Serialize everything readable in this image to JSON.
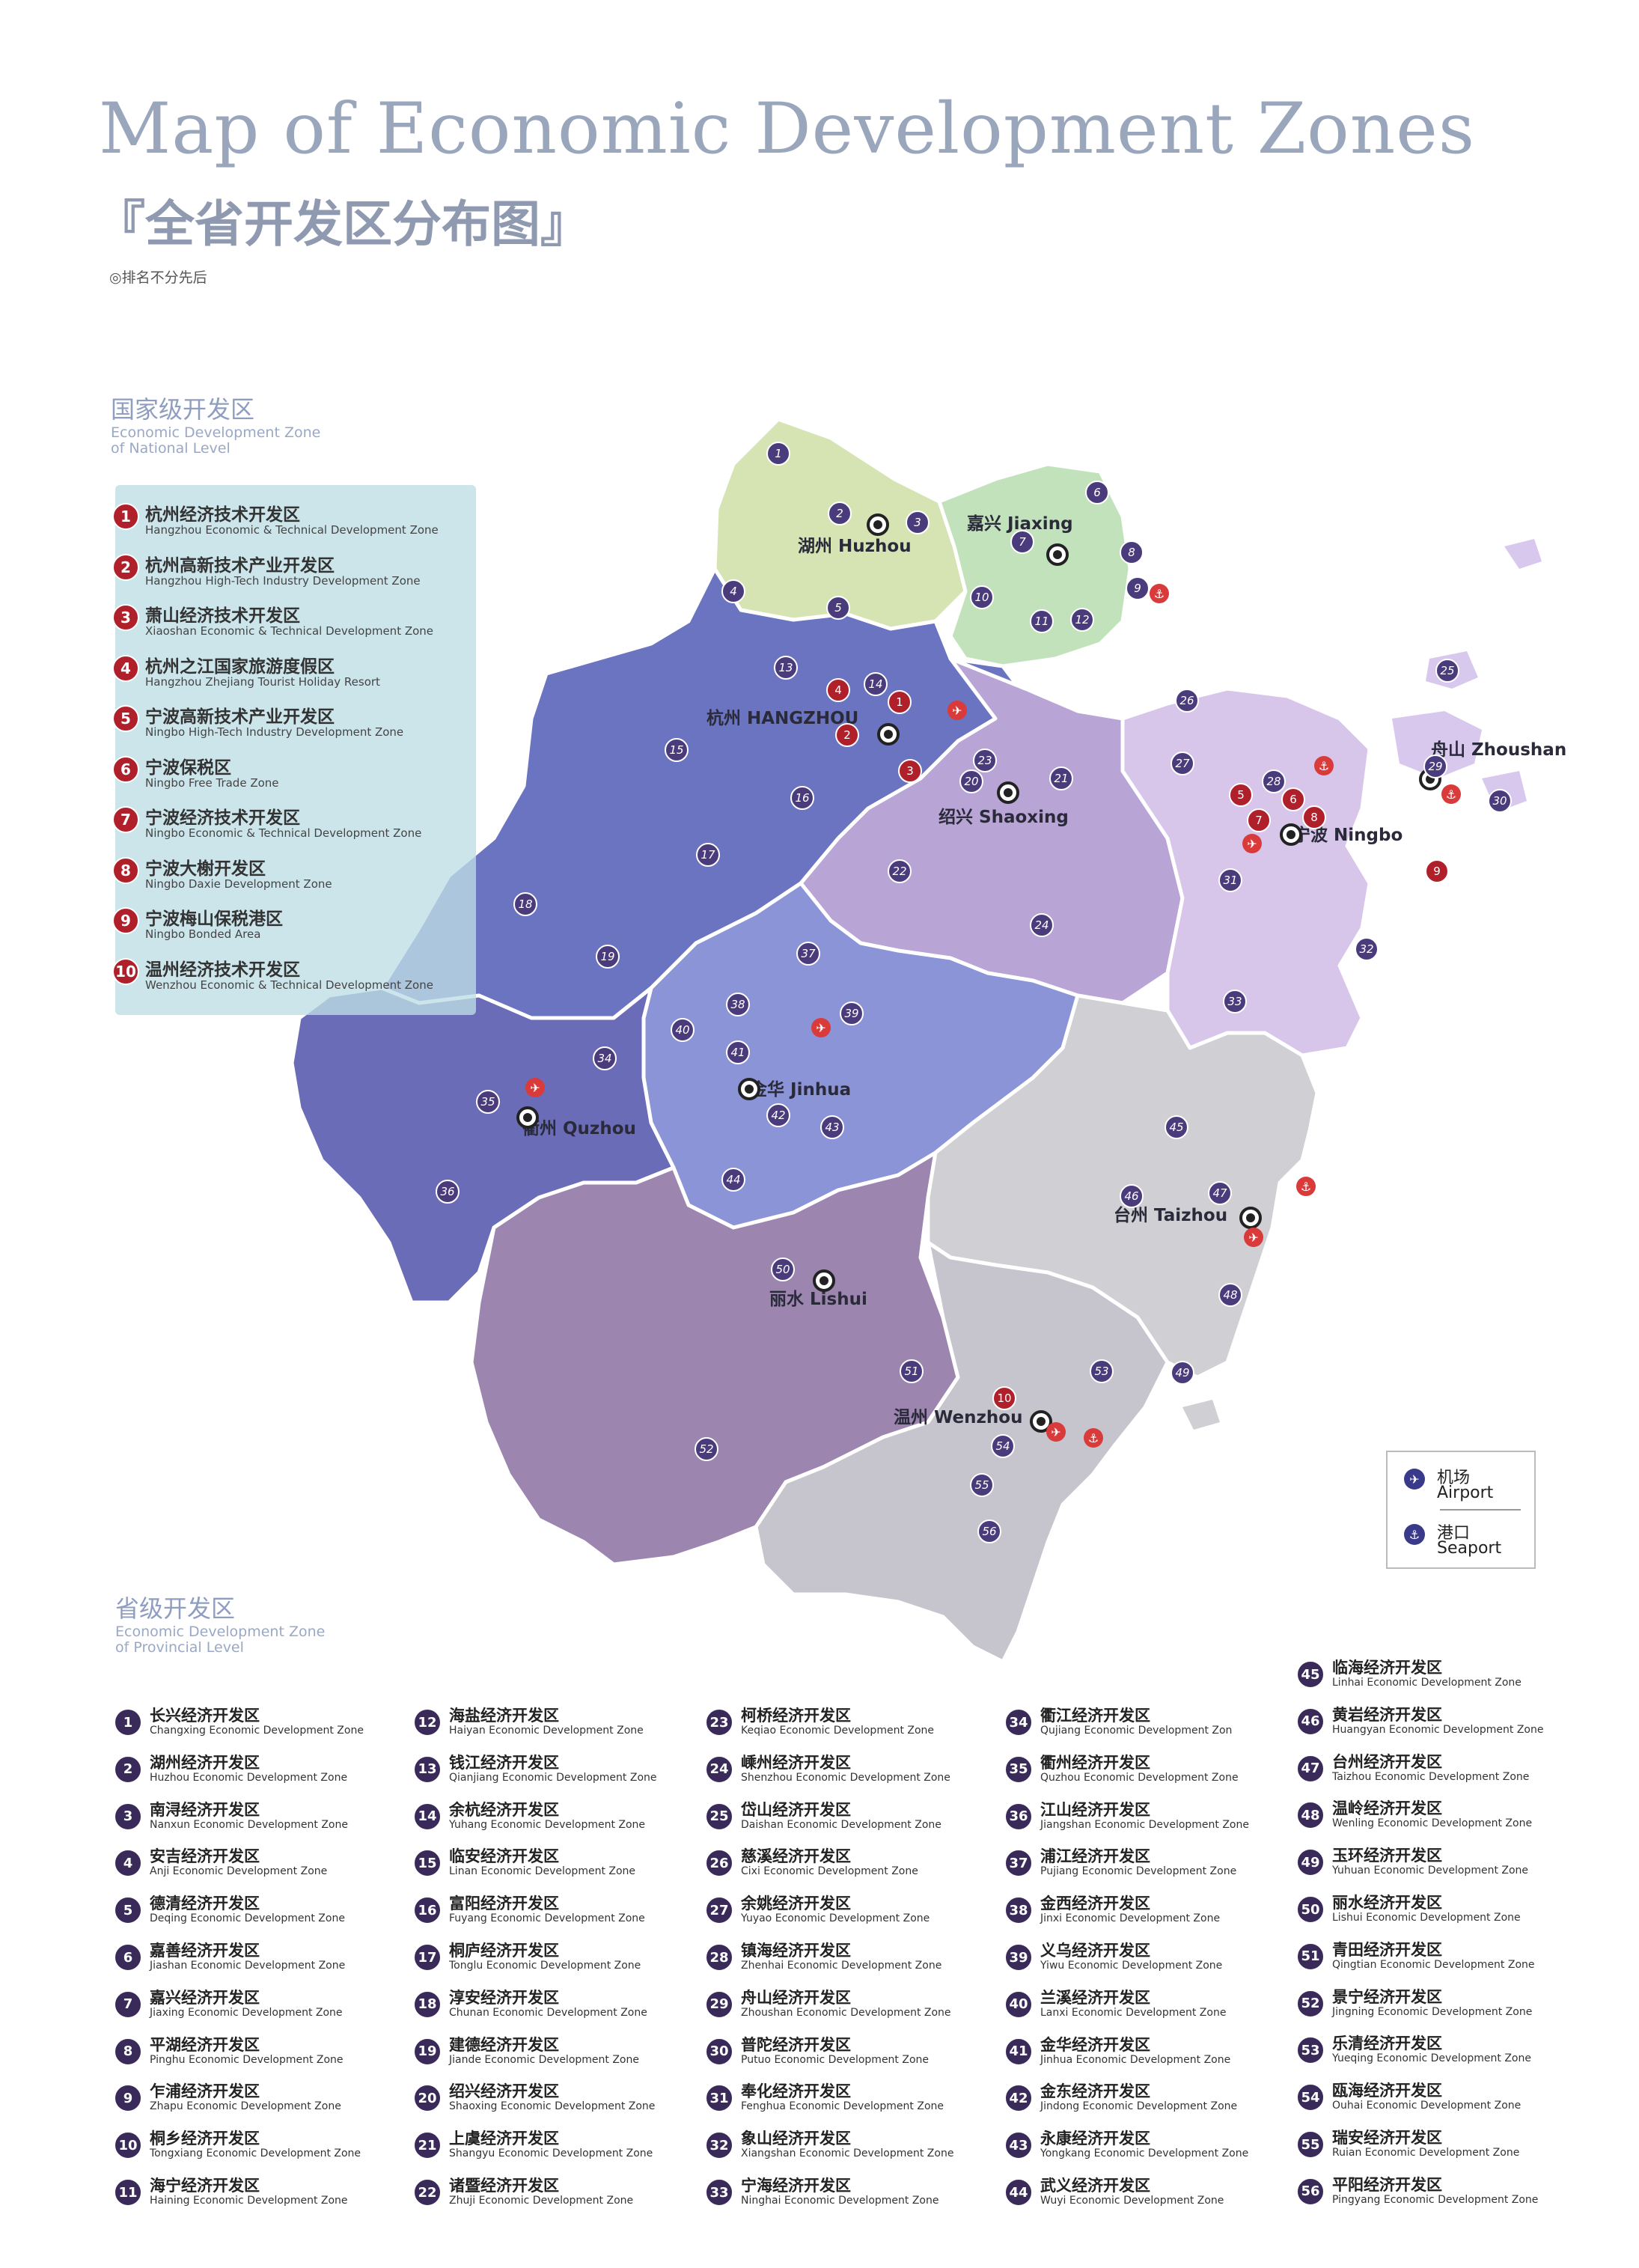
{
  "title": "Map of Economic Development Zones",
  "subtitle": "『全省开发区分布图』",
  "note": "◎排名不分先后",
  "national_section": {
    "cn": "国家级开发区",
    "en": "Economic Development Zone\nof National Level"
  },
  "provincial_section": {
    "cn": "省级开发区",
    "en": "Economic Development Zone\nof Provincial Level"
  },
  "national_zones": [
    {
      "num": "1",
      "cn": "杭州经济技术开发区",
      "en": "Hangzhou Economic & Technical Development Zone"
    },
    {
      "num": "2",
      "cn": "杭州高新技术产业开发区",
      "en": "Hangzhou High-Tech Industry Development Zone"
    },
    {
      "num": "3",
      "cn": "萧山经济技术开发区",
      "en": "Xiaoshan Economic & Technical Development Zone"
    },
    {
      "num": "4",
      "cn": "杭州之江国家旅游度假区",
      "en": "Hangzhou Zhejiang Tourist Holiday Resort"
    },
    {
      "num": "5",
      "cn": "宁波高新技术产业开发区",
      "en": "Ningbo High-Tech Industry Development Zone"
    },
    {
      "num": "6",
      "cn": "宁波保税区",
      "en": "Ningbo Free Trade Zone"
    },
    {
      "num": "7",
      "cn": "宁波经济技术开发区",
      "en": "Ningbo Economic & Technical Development Zone"
    },
    {
      "num": "8",
      "cn": "宁波大榭开发区",
      "en": "Ningbo Daxie Development Zone"
    },
    {
      "num": "9",
      "cn": "宁波梅山保税港区",
      "en": "Ningbo Bonded Area"
    },
    {
      "num": "10",
      "cn": "温州经济技术开发区",
      "en": "Wenzhou Economic & Technical Development Zone"
    }
  ],
  "legend": {
    "airport": {
      "icon": "airport-icon",
      "cn": "机场",
      "en": "Airport"
    },
    "seaport": {
      "icon": "seaport-icon",
      "cn": "港口",
      "en": "Seaport"
    }
  },
  "cities": [
    {
      "id": "huzhou",
      "label": "湖州 Huzhou"
    },
    {
      "id": "jiaxing",
      "label": "嘉兴 Jiaxing"
    },
    {
      "id": "hangzhou",
      "label": "杭州 HANGZHOU"
    },
    {
      "id": "shaoxing",
      "label": "绍兴 Shaoxing"
    },
    {
      "id": "zhoushan",
      "label": "舟山 Zhoushan"
    },
    {
      "id": "ningbo",
      "label": "宁波 Ningbo"
    },
    {
      "id": "jinhua",
      "label": "金华 Jinhua"
    },
    {
      "id": "quzhou",
      "label": "衢州 Quzhou"
    },
    {
      "id": "taizhou",
      "label": "台州 Taizhou"
    },
    {
      "id": "lishui",
      "label": "丽水 Lishui"
    },
    {
      "id": "wenzhou",
      "label": "温州 Wenzhou"
    }
  ],
  "region_colors": {
    "huzhou": "#d6e4b4",
    "jiaxing": "#c2e2bc",
    "hangzhou": "#6a74c0",
    "shaoxing": "#b9a4d6",
    "ningbo": "#d7c6ea",
    "jinhua": "#8b94d6",
    "quzhou": "#6a6cb8",
    "lishui": "#9c86b0",
    "taizhou": "#cfcfd4",
    "wenzhou": "#c6c4cc"
  },
  "provincial_zones": [
    {
      "num": "1",
      "cn": "长兴经济开发区",
      "en": "Changxing Economic Development Zone"
    },
    {
      "num": "2",
      "cn": "湖州经济开发区",
      "en": "Huzhou Economic Development Zone"
    },
    {
      "num": "3",
      "cn": "南浔经济开发区",
      "en": "Nanxun Economic Development Zone"
    },
    {
      "num": "4",
      "cn": "安吉经济开发区",
      "en": "Anji Economic Development Zone"
    },
    {
      "num": "5",
      "cn": "德清经济开发区",
      "en": "Deqing Economic Development Zone"
    },
    {
      "num": "6",
      "cn": "嘉善经济开发区",
      "en": "Jiashan Economic Development Zone"
    },
    {
      "num": "7",
      "cn": "嘉兴经济开发区",
      "en": "Jiaxing Economic Development Zone"
    },
    {
      "num": "8",
      "cn": "平湖经济开发区",
      "en": "Pinghu Economic Development Zone"
    },
    {
      "num": "9",
      "cn": "乍浦经济开发区",
      "en": "Zhapu Economic Development Zone"
    },
    {
      "num": "10",
      "cn": "桐乡经济开发区",
      "en": "Tongxiang Economic Development Zone"
    },
    {
      "num": "11",
      "cn": "海宁经济开发区",
      "en": "Haining Economic Development Zone"
    },
    {
      "num": "12",
      "cn": "海盐经济开发区",
      "en": "Haiyan Economic Development Zone"
    },
    {
      "num": "13",
      "cn": "钱江经济开发区",
      "en": "Qianjiang Economic Development Zone"
    },
    {
      "num": "14",
      "cn": "余杭经济开发区",
      "en": "Yuhang Economic Development Zone"
    },
    {
      "num": "15",
      "cn": "临安经济开发区",
      "en": "Linan Economic Development Zone"
    },
    {
      "num": "16",
      "cn": "富阳经济开发区",
      "en": "Fuyang Economic Development Zone"
    },
    {
      "num": "17",
      "cn": "桐庐经济开发区",
      "en": "Tonglu Economic Development Zone"
    },
    {
      "num": "18",
      "cn": "淳安经济开发区",
      "en": "Chunan Economic Development Zone"
    },
    {
      "num": "19",
      "cn": "建德经济开发区",
      "en": "Jiande Economic Development Zone"
    },
    {
      "num": "20",
      "cn": "绍兴经济开发区",
      "en": "Shaoxing Economic Development Zone"
    },
    {
      "num": "21",
      "cn": "上虞经济开发区",
      "en": "Shangyu Economic Development Zone"
    },
    {
      "num": "22",
      "cn": "诸暨经济开发区",
      "en": "Zhuji Economic Development Zone"
    },
    {
      "num": "23",
      "cn": "柯桥经济开发区",
      "en": "Keqiao Economic Development Zone"
    },
    {
      "num": "24",
      "cn": "嵊州经济开发区",
      "en": "Shenzhou Economic Development Zone"
    },
    {
      "num": "25",
      "cn": "岱山经济开发区",
      "en": "Daishan Economic Development Zone"
    },
    {
      "num": "26",
      "cn": "慈溪经济开发区",
      "en": "Cixi Economic Development Zone"
    },
    {
      "num": "27",
      "cn": "余姚经济开发区",
      "en": "Yuyao Economic Development Zone"
    },
    {
      "num": "28",
      "cn": "镇海经济开发区",
      "en": "Zhenhai Economic Development Zone"
    },
    {
      "num": "29",
      "cn": "舟山经济开发区",
      "en": "Zhoushan Economic Development Zone"
    },
    {
      "num": "30",
      "cn": "普陀经济开发区",
      "en": "Putuo Economic Development Zone"
    },
    {
      "num": "31",
      "cn": "奉化经济开发区",
      "en": "Fenghua Economic Development Zone"
    },
    {
      "num": "32",
      "cn": "象山经济开发区",
      "en": "Xiangshan Economic Development Zone"
    },
    {
      "num": "33",
      "cn": "宁海经济开发区",
      "en": "Ninghai Economic Development Zone"
    },
    {
      "num": "34",
      "cn": "衢江经济开发区",
      "en": "Qujiang Economic Development Zon"
    },
    {
      "num": "35",
      "cn": "衢州经济开发区",
      "en": "Quzhou Economic Development Zone"
    },
    {
      "num": "36",
      "cn": "江山经济开发区",
      "en": "Jiangshan Economic Development Zone"
    },
    {
      "num": "37",
      "cn": "浦江经济开发区",
      "en": "Pujiang Economic Development Zone"
    },
    {
      "num": "38",
      "cn": "金西经济开发区",
      "en": "Jinxi Economic Development Zone"
    },
    {
      "num": "39",
      "cn": "义乌经济开发区",
      "en": "Yiwu Economic Development Zone"
    },
    {
      "num": "40",
      "cn": "兰溪经济开发区",
      "en": "Lanxi Economic Development Zone"
    },
    {
      "num": "41",
      "cn": "金华经济开发区",
      "en": "Jinhua Economic Development Zone"
    },
    {
      "num": "42",
      "cn": "金东经济开发区",
      "en": "Jindong Economic Development Zone"
    },
    {
      "num": "43",
      "cn": "永康经济开发区",
      "en": "Yongkang Economic Development Zone"
    },
    {
      "num": "44",
      "cn": "武义经济开发区",
      "en": "Wuyi Economic Development Zone"
    },
    {
      "num": "45",
      "cn": "临海经济开发区",
      "en": "Linhai Economic Development Zone"
    },
    {
      "num": "46",
      "cn": "黄岩经济开发区",
      "en": "Huangyan Economic Development Zone"
    },
    {
      "num": "47",
      "cn": "台州经济开发区",
      "en": "Taizhou Economic Development Zone"
    },
    {
      "num": "48",
      "cn": "温岭经济开发区",
      "en": "Wenling Economic Development Zone"
    },
    {
      "num": "49",
      "cn": "玉环经济开发区",
      "en": "Yuhuan Economic Development Zone"
    },
    {
      "num": "50",
      "cn": "丽水经济开发区",
      "en": "Lishui Economic Development Zone"
    },
    {
      "num": "51",
      "cn": "青田经济开发区",
      "en": "Qingtian Economic Development Zone"
    },
    {
      "num": "52",
      "cn": "景宁经济开发区",
      "en": "Jingning Economic Development Zone"
    },
    {
      "num": "53",
      "cn": "乐清经济开发区",
      "en": "Yueqing Economic Development Zone"
    },
    {
      "num": "54",
      "cn": "瓯海经济开发区",
      "en": "Ouhai Economic Development Zone"
    },
    {
      "num": "55",
      "cn": "瑞安经济开发区",
      "en": "Ruian Economic Development Zone"
    },
    {
      "num": "56",
      "cn": "平阳经济开发区",
      "en": "Pingyang Economic Development Zone"
    }
  ]
}
